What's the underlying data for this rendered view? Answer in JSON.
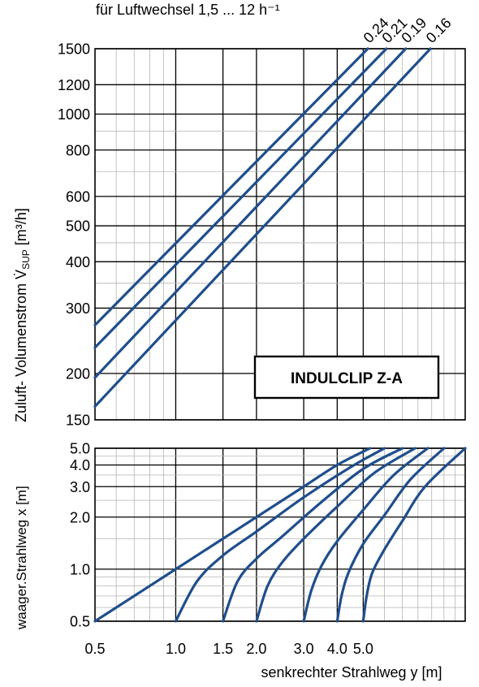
{
  "header_note": "für Luftwechsel 1,5 ... 12 h⁻¹",
  "line_color": "#1f4e8c",
  "chart_data": [
    {
      "type": "line",
      "xscale": "log",
      "yscale": "log",
      "xlim": [
        0.5,
        12
      ],
      "ylim": [
        150,
        1500
      ],
      "ylabel": "Zuluft- Volumenstrom V̇SUP [m³/h]",
      "ylabel_parts": {
        "main": "Zuluft- Volumenstrom ",
        "symbol": "V̇",
        "subscript": "SUP",
        "unit": "[m³/h]"
      },
      "y_ticks": [
        150,
        200,
        300,
        400,
        500,
        600,
        800,
        1000,
        1200,
        1500
      ],
      "y_tick_labels": [
        "150",
        "200",
        "300",
        "400",
        "500",
        "600",
        "800",
        "1000",
        "1200",
        "1500"
      ],
      "x_major_grid": [
        1.0,
        1.5,
        2.0,
        3.0,
        4.0,
        5.0
      ],
      "grid": true,
      "annotation": "INDULCLIP Z-A",
      "series": [
        {
          "name": "0.24",
          "x": [
            0.5,
            5.2
          ],
          "y": [
            270,
            1500
          ]
        },
        {
          "name": "0.21",
          "x": [
            0.5,
            6.1
          ],
          "y": [
            235,
            1500
          ]
        },
        {
          "name": "0.19",
          "x": [
            0.5,
            7.2
          ],
          "y": [
            195,
            1500
          ]
        },
        {
          "name": "0.16",
          "x": [
            0.5,
            8.9
          ],
          "y": [
            163,
            1500
          ]
        }
      ]
    },
    {
      "type": "line",
      "xscale": "log",
      "yscale": "log",
      "xlim": [
        0.5,
        12
      ],
      "ylim": [
        0.5,
        5.0
      ],
      "xlabel": "senkrechter Strahlweg y [m]",
      "ylabel": "waager.Strahlweg x [m]",
      "x_ticks": [
        0.5,
        1.0,
        1.5,
        2.0,
        3.0,
        4.0,
        5.0
      ],
      "x_tick_labels": [
        "0.5",
        "1.0",
        "1.5",
        "2.0",
        "3.0",
        "4.0",
        "5.0"
      ],
      "y_ticks": [
        0.5,
        1.0,
        2.0,
        3.0,
        4.0,
        5.0
      ],
      "y_tick_labels": [
        "0.5",
        "1.0",
        "2.0",
        "3.0",
        "4.0",
        "5.0"
      ],
      "grid": true,
      "series": [
        {
          "x": [
            0.5,
            1.0,
            1.5,
            2.0,
            3.0,
            4.0,
            5.3
          ],
          "y": [
            0.5,
            1.0,
            1.5,
            2.0,
            3.0,
            4.0,
            5.0
          ]
        },
        {
          "x": [
            1.0,
            1.2,
            1.5,
            2.0,
            3.0,
            4.5,
            6.0
          ],
          "y": [
            0.5,
            0.85,
            1.2,
            1.65,
            2.6,
            3.9,
            5.0
          ]
        },
        {
          "x": [
            1.5,
            1.7,
            2.0,
            2.5,
            3.5,
            5.0,
            7.0
          ],
          "y": [
            0.5,
            0.85,
            1.15,
            1.55,
            2.45,
            3.8,
            5.0
          ]
        },
        {
          "x": [
            2.0,
            2.2,
            2.5,
            3.0,
            4.0,
            5.5,
            7.8
          ],
          "y": [
            0.5,
            0.8,
            1.1,
            1.5,
            2.3,
            3.6,
            5.0
          ]
        },
        {
          "x": [
            3.0,
            3.2,
            3.5,
            4.0,
            5.0,
            6.5,
            8.7
          ],
          "y": [
            0.5,
            0.75,
            1.05,
            1.45,
            2.2,
            3.5,
            5.0
          ]
        },
        {
          "x": [
            4.0,
            4.15,
            4.4,
            5.0,
            6.0,
            7.5,
            10.0
          ],
          "y": [
            0.5,
            0.7,
            0.95,
            1.4,
            2.05,
            3.3,
            5.0
          ]
        },
        {
          "x": [
            5.0,
            5.15,
            5.4,
            6.0,
            7.0,
            8.5,
            12.0
          ],
          "y": [
            0.5,
            0.7,
            0.95,
            1.3,
            1.9,
            3.0,
            5.0
          ]
        }
      ]
    }
  ]
}
